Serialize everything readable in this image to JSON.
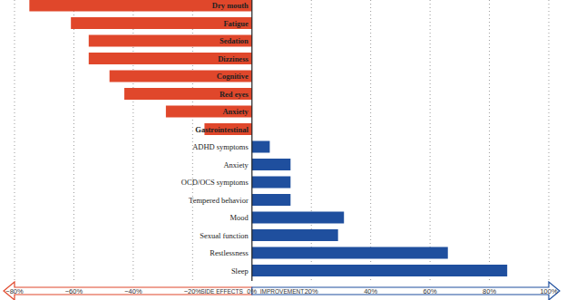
{
  "chart_data": {
    "type": "bar",
    "orientation": "horizontal",
    "categories": [
      "Dry mouth",
      "Fatigue",
      "Sedation",
      "Dizziness",
      "Cognitive",
      "Red eyes",
      "Anxiety",
      "Gastrointestinal",
      "ADHD symptoms",
      "Anxiety",
      "OCD/OCS symptoms",
      "Tempered behavior",
      "Mood",
      "Sexual function",
      "Restlessness",
      "Sleep"
    ],
    "series": [
      {
        "name": "SIDE EFFECTS",
        "color": "#e0472b",
        "values": [
          -75,
          -61,
          -55,
          -55,
          -48,
          -43,
          -29,
          -16,
          null,
          null,
          null,
          null,
          null,
          null,
          null,
          null
        ]
      },
      {
        "name": "IMPROVEMENT",
        "color": "#1f4f9e",
        "values": [
          null,
          null,
          null,
          null,
          null,
          null,
          null,
          null,
          6,
          13,
          13,
          13,
          31,
          29,
          66,
          86
        ]
      }
    ],
    "xlim": [
      -80,
      100
    ],
    "xticks": [
      {
        "value": -80,
        "label": "−80%"
      },
      {
        "value": -60,
        "label": "−60%"
      },
      {
        "value": -40,
        "label": "−40%"
      },
      {
        "value": -20,
        "label": "−20%"
      },
      {
        "value": 0,
        "label": "0%"
      },
      {
        "value": 20,
        "label": "20%"
      },
      {
        "value": 40,
        "label": "40%"
      },
      {
        "value": 60,
        "label": "60%"
      },
      {
        "value": 80,
        "label": "80%"
      },
      {
        "value": 100,
        "label": "100%"
      }
    ],
    "grid": true
  }
}
